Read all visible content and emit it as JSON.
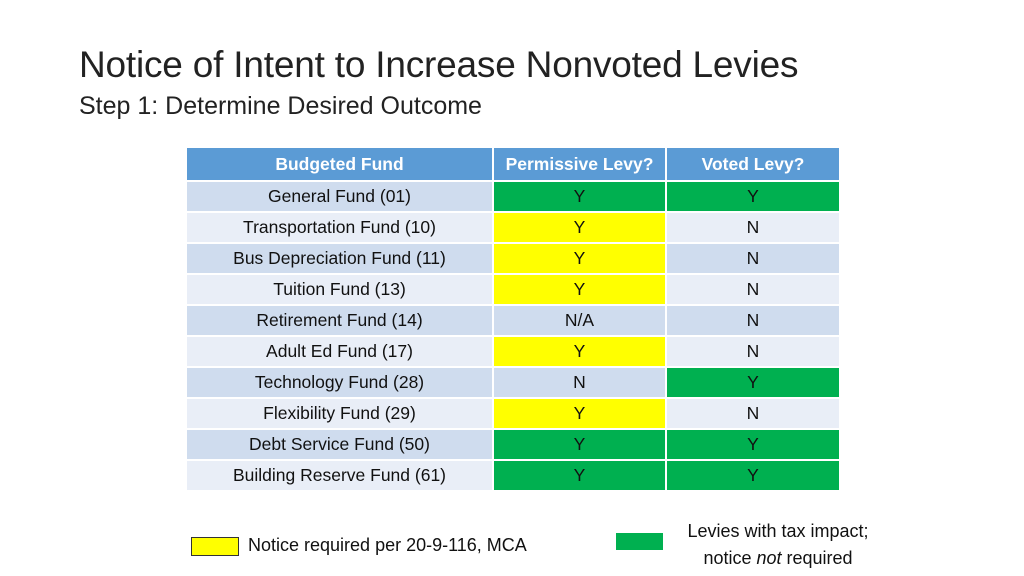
{
  "slide": {
    "title": "Notice of Intent to Increase Nonvoted Levies",
    "subtitle": "Step 1: Determine Desired Outcome"
  },
  "table": {
    "headers": [
      "Budgeted Fund",
      "Permissive Levy?",
      "Voted Levy?"
    ],
    "rows": [
      {
        "fund": "General Fund (01)",
        "permissive": "Y",
        "voted": "Y"
      },
      {
        "fund": "Transportation Fund (10)",
        "permissive": "Y",
        "voted": "N"
      },
      {
        "fund": "Bus Depreciation Fund (11)",
        "permissive": "Y",
        "voted": "N"
      },
      {
        "fund": "Tuition Fund (13)",
        "permissive": "Y",
        "voted": "N"
      },
      {
        "fund": "Retirement Fund (14)",
        "permissive": "N/A",
        "voted": "N"
      },
      {
        "fund": "Adult Ed Fund (17)",
        "permissive": "Y",
        "voted": "N"
      },
      {
        "fund": "Technology Fund (28)",
        "permissive": "N",
        "voted": "Y"
      },
      {
        "fund": "Flexibility Fund (29)",
        "permissive": "Y",
        "voted": "N"
      },
      {
        "fund": "Debt Service Fund (50)",
        "permissive": "Y",
        "voted": "Y"
      },
      {
        "fund": "Building Reserve Fund (61)",
        "permissive": "Y",
        "voted": "Y"
      }
    ]
  },
  "highlights": {
    "permissive": [
      "green",
      "yellow",
      "yellow",
      "yellow",
      "none",
      "yellow",
      "none",
      "yellow",
      "green",
      "green"
    ],
    "voted": [
      "green",
      "none",
      "none",
      "none",
      "none",
      "none",
      "green",
      "none",
      "green",
      "green"
    ]
  },
  "colors": {
    "header": "#5b9bd5",
    "yellow": "#ffff00",
    "green": "#00b050"
  },
  "legend": {
    "yellow_label": "Notice required per 20-9-116, MCA",
    "green_label_line1": "Levies with tax impact;",
    "green_label_line2_pre": "notice ",
    "green_label_line2_em": "not",
    "green_label_line2_post": " required"
  }
}
